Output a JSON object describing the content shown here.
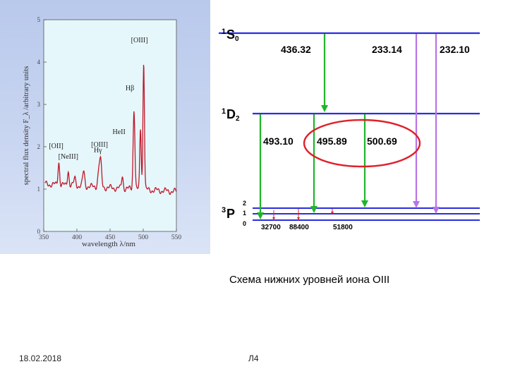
{
  "spectrum": {
    "ylabel": "spectral flux density F_λ /arbitrary units",
    "xlabel": "wavelength λ/nm",
    "y_ticks": [
      "0",
      "1",
      "2",
      "3",
      "4",
      "5"
    ],
    "x_ticks": [
      "350",
      "400",
      "450",
      "500",
      "550"
    ],
    "xlim": [
      350,
      550
    ],
    "ylim": [
      0,
      5
    ],
    "line_labels": [
      {
        "text": "[OIII]",
        "wl": 500.7
      },
      {
        "text": "Hβ",
        "wl": 486.1
      },
      {
        "text": "HeII",
        "wl": 468.6
      },
      {
        "text": "[OIII]",
        "wl": 436.3
      },
      {
        "text": "Hγ",
        "wl": 434.0
      },
      {
        "text": "[OII]",
        "wl": 372.7
      },
      {
        "text": "[NeIII]",
        "wl": 386.9
      }
    ],
    "colors": {
      "curve": "#c0182a",
      "plot_bg": "#e6f7fb",
      "panel": "#c9d6f1"
    }
  },
  "diagram": {
    "levels": {
      "S0": "S",
      "S0_sup": "1",
      "S0_sub": "0",
      "D2": "D",
      "D2_sup": "1",
      "D2_sub": "2",
      "P": "P",
      "P_sup": "3",
      "P_sub_labels": [
        "2",
        "1",
        "0"
      ]
    },
    "transitions_top": [
      "436.32",
      "233.14",
      "232.10"
    ],
    "transitions_mid": [
      "493.10",
      "495.89",
      "500.69"
    ],
    "transitions_low": [
      "32700",
      "88400",
      "51800"
    ],
    "colors": {
      "level": "#2a2ee0",
      "green": "#1fb52a",
      "violet": "#b774e8",
      "red": "#d8202a",
      "ellipse": "#e0202a"
    }
  },
  "caption": "Схема нижних уровней иона OIII",
  "footer": {
    "date": "18.02.2018",
    "slide": "Л4"
  }
}
